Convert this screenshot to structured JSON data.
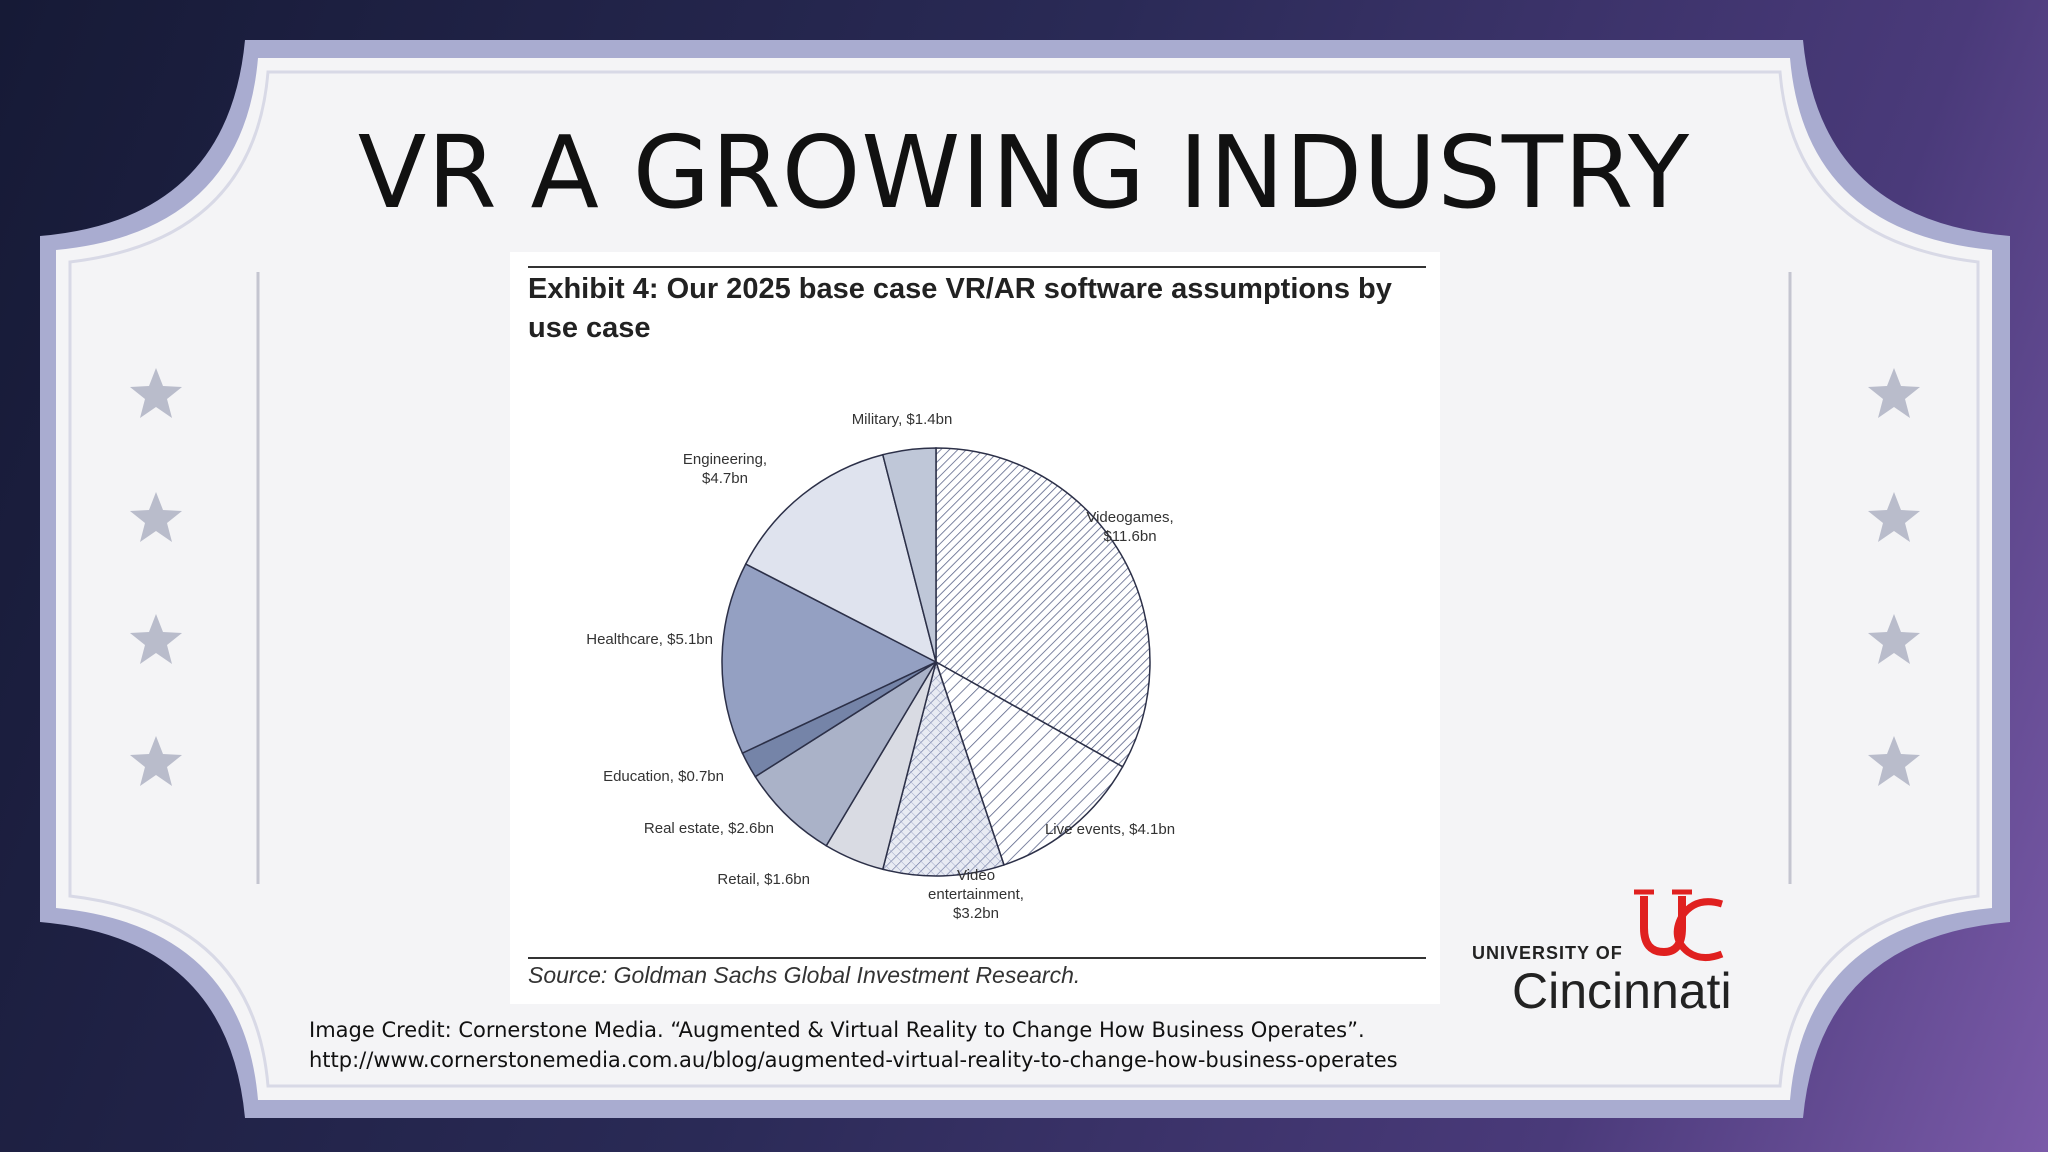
{
  "slide": {
    "title": "VR A GROWING INDUSTRY",
    "credit_line1": "Image Credit:  Cornerstone Media. “Augmented & Virtual Reality to Change How Business Operates”.",
    "credit_line2": "http://www.cornerstonemedia.com.au/blog/augmented-virtual-reality-to-change-how-business-operates"
  },
  "logo": {
    "small_text": "UNIVERSITY OF",
    "big_text": "Cincinnati",
    "accent": "#e0201f"
  },
  "colors": {
    "frame_outer": "#a9acd0",
    "frame_inner": "#f4f4f6",
    "star": "#b9bccb"
  },
  "chart_data": {
    "type": "pie",
    "title": "Exhibit 4: Our 2025 base case VR/AR software assumptions by use case",
    "source": "Source: Goldman Sachs Global Investment Research.",
    "unit": "$bn",
    "slices": [
      {
        "name": "Videogames",
        "value": 11.6,
        "label": [
          "Videogames,",
          "$11.6bn"
        ],
        "fill": "hatch-fine"
      },
      {
        "name": "Live events",
        "value": 4.1,
        "label": [
          "Live events, $4.1bn"
        ],
        "fill": "hatch-wide"
      },
      {
        "name": "Video entertainment",
        "value": 3.2,
        "label": [
          "Video",
          "entertainment,",
          "$3.2bn"
        ],
        "fill": "hatch-cross"
      },
      {
        "name": "Retail",
        "value": 1.6,
        "label": [
          "Retail, $1.6bn"
        ],
        "fill": "#d9dbe3"
      },
      {
        "name": "Real estate",
        "value": 2.6,
        "label": [
          "Real estate, $2.6bn"
        ],
        "fill": "#aab2c8"
      },
      {
        "name": "Education",
        "value": 0.7,
        "label": [
          "Education, $0.7bn"
        ],
        "fill": "#7584a8"
      },
      {
        "name": "Healthcare",
        "value": 5.1,
        "label": [
          "Healthcare, $5.1bn"
        ],
        "fill": "#94a0c2"
      },
      {
        "name": "Engineering",
        "value": 4.7,
        "label": [
          "Engineering,",
          "$4.7bn"
        ],
        "fill": "#dfe3ee"
      },
      {
        "name": "Military",
        "value": 1.4,
        "label": [
          "Military, $1.4bn"
        ],
        "fill": "#bfc7d8"
      }
    ]
  }
}
